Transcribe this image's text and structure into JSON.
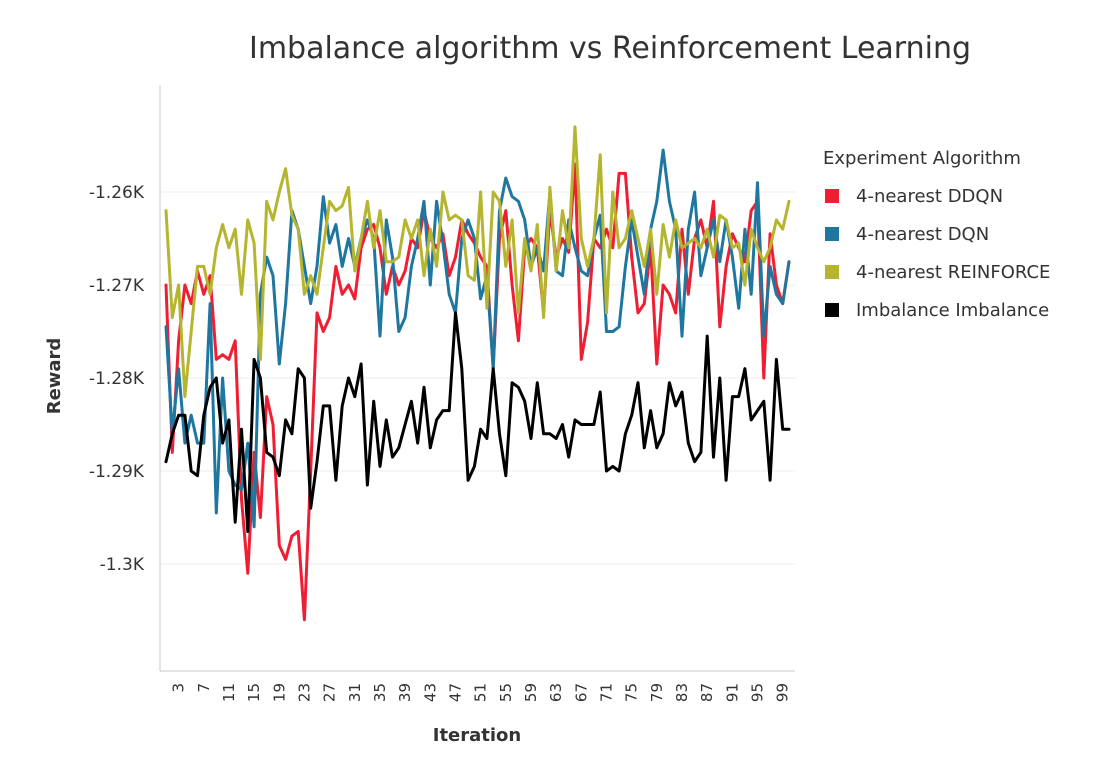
{
  "chart_data": {
    "type": "line",
    "title": "Imbalance algorithm vs Reinforcement Learning",
    "xlabel": "Iteration",
    "ylabel": "Reward",
    "x_range": [
      1,
      100
    ],
    "ylim": [
      -1311.5,
      -1248.5
    ],
    "y_ticks": [
      -1260,
      -1270,
      -1280,
      -1290,
      -1300
    ],
    "y_tick_labels": [
      "-1.26K",
      "-1.27K",
      "-1.28K",
      "-1.29K",
      "-1.3K"
    ],
    "x_ticks": [
      3,
      7,
      11,
      15,
      19,
      23,
      27,
      31,
      35,
      39,
      43,
      47,
      51,
      55,
      59,
      63,
      67,
      71,
      75,
      79,
      83,
      87,
      91,
      95,
      99
    ],
    "x_tick_labels": [
      "3",
      "7",
      "11",
      "15",
      "19",
      "23",
      "27",
      "31",
      "35",
      "39",
      "43",
      "47",
      "51",
      "55",
      "59",
      "63",
      "67",
      "71",
      "75",
      "79",
      "83",
      "87",
      "91",
      "95",
      "99"
    ],
    "grid": true,
    "legend": {
      "title": "Experiment Algorithm",
      "position": "right"
    },
    "series": [
      {
        "name": "4-nearest DDQN",
        "color": "#f01e32",
        "values": [
          -1270,
          -1288,
          -1276,
          -1270,
          -1272,
          -1268.5,
          -1271,
          -1269,
          -1278,
          -1277.5,
          -1278,
          -1276,
          -1293,
          -1301,
          -1288,
          -1295,
          -1282,
          -1285,
          -1298,
          -1299.5,
          -1297,
          -1296.5,
          -1306,
          -1290,
          -1273,
          -1275,
          -1273.5,
          -1268,
          -1271,
          -1270,
          -1271.5,
          -1266,
          -1264,
          -1263.5,
          -1266,
          -1271,
          -1268,
          -1270,
          -1268.5,
          -1265,
          -1266,
          -1262,
          -1265,
          -1266,
          -1264.5,
          -1269,
          -1267,
          -1263,
          -1264.5,
          -1265.5,
          -1267,
          -1268,
          -1279,
          -1265,
          -1262,
          -1270,
          -1276,
          -1266,
          -1265,
          -1266,
          -1273,
          -1262,
          -1267,
          -1265,
          -1266.5,
          -1257,
          -1278,
          -1274,
          -1265,
          -1266,
          -1264,
          -1266,
          -1258,
          -1258,
          -1267,
          -1273,
          -1272,
          -1266,
          -1278.5,
          -1270,
          -1271,
          -1273,
          -1264,
          -1271,
          -1265,
          -1263,
          -1266,
          -1261,
          -1274.5,
          -1268,
          -1264.5,
          -1266,
          -1267.5,
          -1262,
          -1261,
          -1280,
          -1264.5,
          -1270,
          -1272,
          -1267.5
        ]
      },
      {
        "name": "4-nearest DQN",
        "color": "#1f77a0",
        "values": [
          -1274.5,
          -1286,
          -1279,
          -1287,
          -1284,
          -1287,
          -1287,
          -1272,
          -1294.5,
          -1280,
          -1290,
          -1291.5,
          -1292,
          -1287,
          -1296,
          -1271,
          -1267,
          -1269,
          -1278.5,
          -1272,
          -1262,
          -1264,
          -1268,
          -1272,
          -1268,
          -1260.5,
          -1265.5,
          -1263.5,
          -1268,
          -1265,
          -1268,
          -1265,
          -1263,
          -1265,
          -1275.5,
          -1263,
          -1267,
          -1275,
          -1273.5,
          -1268,
          -1265,
          -1261,
          -1270,
          -1261,
          -1265.5,
          -1271,
          -1273,
          -1265,
          -1263,
          -1265,
          -1271.5,
          -1269,
          -1279,
          -1262,
          -1258.5,
          -1260.5,
          -1261,
          -1263,
          -1268,
          -1266,
          -1268.5,
          -1260,
          -1268.5,
          -1269,
          -1263,
          -1266,
          -1268.5,
          -1269,
          -1265,
          -1262.5,
          -1275,
          -1275,
          -1274.5,
          -1268,
          -1263,
          -1267,
          -1271,
          -1264,
          -1261,
          -1255.5,
          -1261,
          -1264,
          -1275.5,
          -1264,
          -1260,
          -1269,
          -1266,
          -1263,
          -1267.5,
          -1263,
          -1267,
          -1272.5,
          -1264,
          -1271,
          -1259,
          -1275.5,
          -1268,
          -1271,
          -1272,
          -1267.5
        ]
      },
      {
        "name": "4-nearest REINFORCE",
        "color": "#b5b530",
        "values": [
          -1262,
          -1273.5,
          -1270,
          -1282,
          -1275,
          -1268,
          -1268,
          -1271,
          -1266,
          -1263.5,
          -1266,
          -1264,
          -1271,
          -1263,
          -1265.5,
          -1278,
          -1261,
          -1263,
          -1260,
          -1257.5,
          -1262.5,
          -1264,
          -1271,
          -1269,
          -1271,
          -1266,
          -1261,
          -1262,
          -1261.5,
          -1259.5,
          -1268.5,
          -1265,
          -1261,
          -1266,
          -1262,
          -1267.5,
          -1267.5,
          -1267,
          -1263,
          -1265,
          -1263,
          -1269,
          -1264,
          -1268,
          -1260,
          -1263,
          -1262.5,
          -1263,
          -1269,
          -1269.5,
          -1260,
          -1272.5,
          -1260,
          -1261,
          -1268,
          -1263,
          -1273,
          -1265,
          -1268.5,
          -1263.5,
          -1273.5,
          -1259.5,
          -1268.5,
          -1262,
          -1266,
          -1253,
          -1265,
          -1268,
          -1265,
          -1256,
          -1273,
          -1260,
          -1266,
          -1265,
          -1262,
          -1265,
          -1268,
          -1264,
          -1271,
          -1263.5,
          -1267,
          -1263,
          -1266,
          -1265.5,
          -1265,
          -1266,
          -1264,
          -1267,
          -1262.5,
          -1263,
          -1266,
          -1265.5,
          -1270,
          -1264,
          -1266,
          -1267.5,
          -1266,
          -1263,
          -1264,
          -1261
        ]
      },
      {
        "name": "Imbalance Imbalance",
        "color": "#000000",
        "values": [
          -1289,
          -1286,
          -1284,
          -1284,
          -1290,
          -1290.5,
          -1284,
          -1281,
          -1280,
          -1287,
          -1284.5,
          -1295.5,
          -1285.5,
          -1296.5,
          -1278,
          -1280,
          -1288,
          -1288.5,
          -1290.5,
          -1284.5,
          -1286,
          -1279,
          -1280,
          -1294,
          -1289,
          -1283,
          -1283,
          -1291,
          -1283,
          -1280,
          -1282,
          -1278.5,
          -1291.5,
          -1282.5,
          -1289.5,
          -1284.5,
          -1288.5,
          -1287.5,
          -1285,
          -1282.5,
          -1287,
          -1281,
          -1287.5,
          -1284.5,
          -1283.5,
          -1283.5,
          -1273,
          -1279,
          -1291,
          -1289.5,
          -1285.5,
          -1286.5,
          -1279,
          -1286,
          -1290.5,
          -1280.5,
          -1281,
          -1282.5,
          -1286.5,
          -1280.5,
          -1286,
          -1286,
          -1286.5,
          -1285,
          -1288.5,
          -1284.5,
          -1285,
          -1285,
          -1285,
          -1281.5,
          -1290,
          -1289.5,
          -1290,
          -1286,
          -1284,
          -1280.5,
          -1287.5,
          -1283.5,
          -1287.5,
          -1286,
          -1280.5,
          -1283,
          -1281.5,
          -1287,
          -1289,
          -1288,
          -1275.5,
          -1288.5,
          -1280,
          -1291,
          -1282,
          -1282,
          -1279,
          -1284.5,
          -1283.5,
          -1282.5,
          -1291,
          -1278,
          -1285.5,
          -1285.5
        ]
      }
    ]
  }
}
